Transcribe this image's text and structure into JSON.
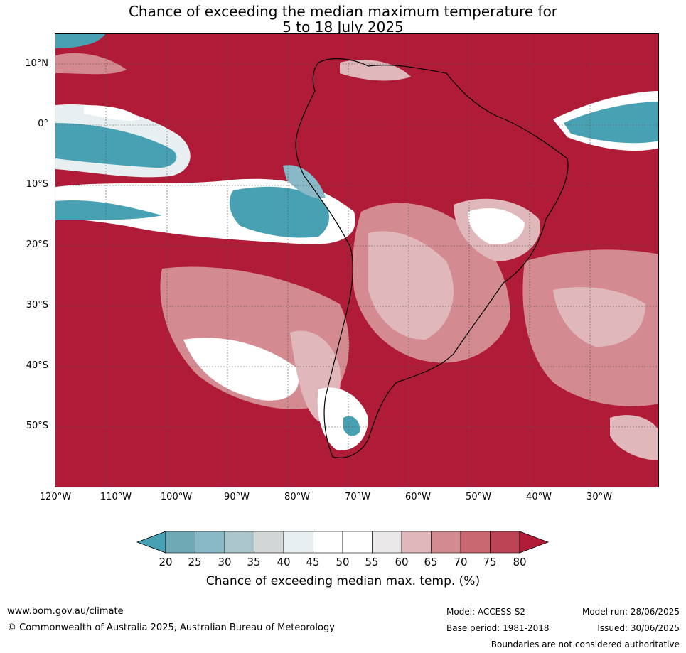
{
  "title_line1": "Chance of exceeding the median maximum temperature for",
  "title_line2": "5 to 18 July 2025",
  "map": {
    "lat_labels": [
      "10°N",
      "0°",
      "10°S",
      "20°S",
      "30°S",
      "40°S",
      "50°S"
    ],
    "lon_labels": [
      "120°W",
      "110°W",
      "100°W",
      "90°W",
      "80°W",
      "70°W",
      "60°W",
      "50°W",
      "40°W",
      "30°W"
    ],
    "colors": {
      "high": "#b01c37",
      "mid_high": "#c8686f",
      "mid": "#d38a90",
      "low_mid": "#e0b8bc",
      "neutral": "#ffffff",
      "cool": "#48a1b2",
      "cool_light": "#89b9c6"
    }
  },
  "colorbar": {
    "ticks": [
      "20",
      "25",
      "30",
      "35",
      "40",
      "45",
      "50",
      "55",
      "60",
      "65",
      "70",
      "75",
      "80"
    ],
    "colors": [
      "#48a1b2",
      "#6ea9b5",
      "#89b9c6",
      "#abc6ca",
      "#d3d6d7",
      "#e8eff1",
      "#ffffff",
      "#ffffff",
      "#ebe8ea",
      "#e0b8bc",
      "#d38a90",
      "#c8686f",
      "#bd4454",
      "#b01c37"
    ],
    "title": "Chance of exceeding median max. temp. (%)"
  },
  "footer": {
    "website": "www.bom.gov.au/climate",
    "copyright": "© Commonwealth of Australia 2025, Australian Bureau of Meteorology",
    "model": "Model: ACCESS-S2",
    "base_period": "Base period: 1981-2018",
    "model_run": "Model run: 28/06/2025",
    "issued": "Issued: 30/06/2025",
    "disclaimer": "Boundaries are not considered authoritative"
  }
}
